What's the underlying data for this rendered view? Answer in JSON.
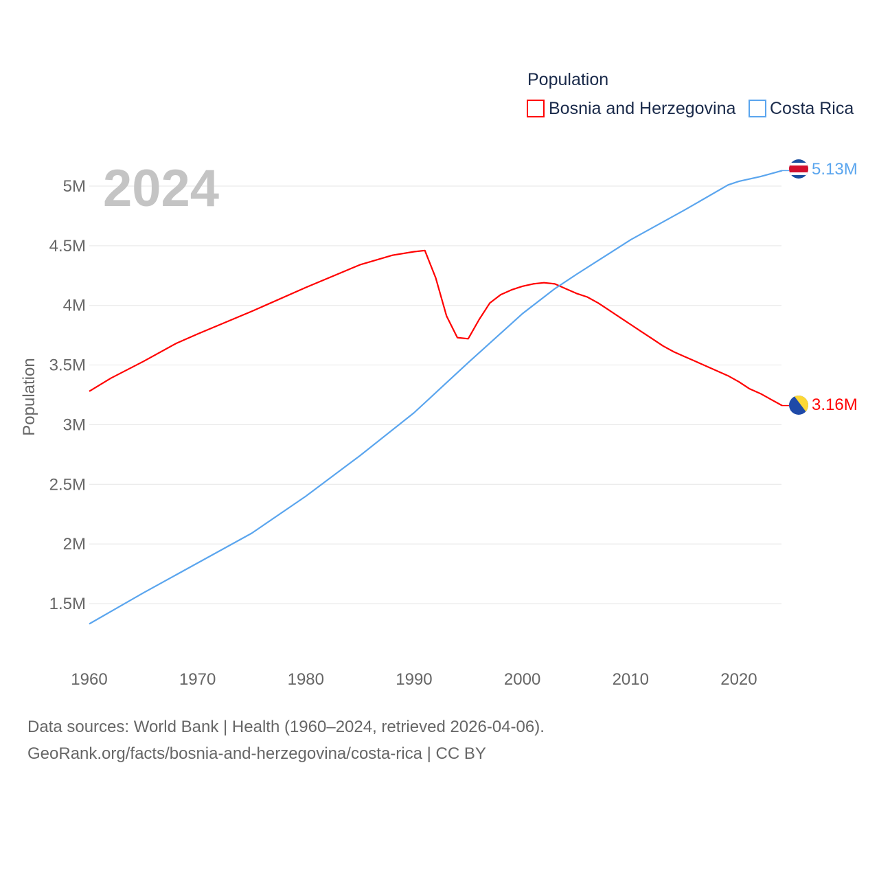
{
  "chart_data": {
    "type": "line",
    "year_label": "2024",
    "legend_title": "Population",
    "legend_placement": "top-right",
    "ylabel": "Population",
    "xlabel": "",
    "xlim": [
      1960,
      2024
    ],
    "ylim": [
      1.1,
      5.25
    ],
    "x_ticks": [
      1960,
      1970,
      1980,
      1990,
      2000,
      2010,
      2020
    ],
    "x_tick_labels": [
      "1960",
      "1970",
      "1980",
      "1990",
      "2000",
      "2010",
      "2020"
    ],
    "y_ticks": [
      1.5,
      2,
      2.5,
      3,
      3.5,
      4,
      4.5,
      5
    ],
    "y_tick_labels": [
      "1.5M",
      "2M",
      "2.5M",
      "3M",
      "3.5M",
      "4M",
      "4.5M",
      "5M"
    ],
    "grid": true,
    "series": [
      {
        "name": "Bosnia and Herzegovina",
        "color": "#ff0000",
        "end_label": "3.16M",
        "flag": "bosnia-flag",
        "x": [
          1960,
          1962,
          1965,
          1968,
          1970,
          1975,
          1980,
          1985,
          1988,
          1990,
          1991,
          1992,
          1993,
          1994,
          1995,
          1996,
          1997,
          1998,
          1999,
          2000,
          2001,
          2002,
          2003,
          2004,
          2005,
          2006,
          2007,
          2008,
          2009,
          2010,
          2011,
          2012,
          2013,
          2014,
          2015,
          2016,
          2017,
          2018,
          2019,
          2020,
          2021,
          2022,
          2023,
          2024
        ],
        "values": [
          3.28,
          3.39,
          3.53,
          3.68,
          3.76,
          3.95,
          4.15,
          4.34,
          4.42,
          4.45,
          4.46,
          4.23,
          3.91,
          3.73,
          3.72,
          3.88,
          4.02,
          4.09,
          4.13,
          4.16,
          4.18,
          4.19,
          4.18,
          4.14,
          4.1,
          4.07,
          4.02,
          3.96,
          3.9,
          3.84,
          3.78,
          3.72,
          3.66,
          3.61,
          3.57,
          3.53,
          3.49,
          3.45,
          3.41,
          3.36,
          3.3,
          3.26,
          3.21,
          3.16
        ]
      },
      {
        "name": "Costa Rica",
        "color": "#5aa5ee",
        "end_label": "5.13M",
        "flag": "costa-rica-flag",
        "x": [
          1960,
          1965,
          1970,
          1975,
          1980,
          1985,
          1990,
          1995,
          2000,
          2003,
          2005,
          2010,
          2015,
          2019,
          2020,
          2022,
          2024
        ],
        "values": [
          1.33,
          1.59,
          1.84,
          2.09,
          2.4,
          2.74,
          3.1,
          3.52,
          3.93,
          4.14,
          4.26,
          4.55,
          4.8,
          5.01,
          5.04,
          5.08,
          5.13
        ]
      }
    ]
  },
  "footer": {
    "line1": "Data sources: World Bank | Health (1960–2024, retrieved 2026-04-06).",
    "line2": "GeoRank.org/facts/bosnia-and-herzegovina/costa-rica | CC BY"
  }
}
